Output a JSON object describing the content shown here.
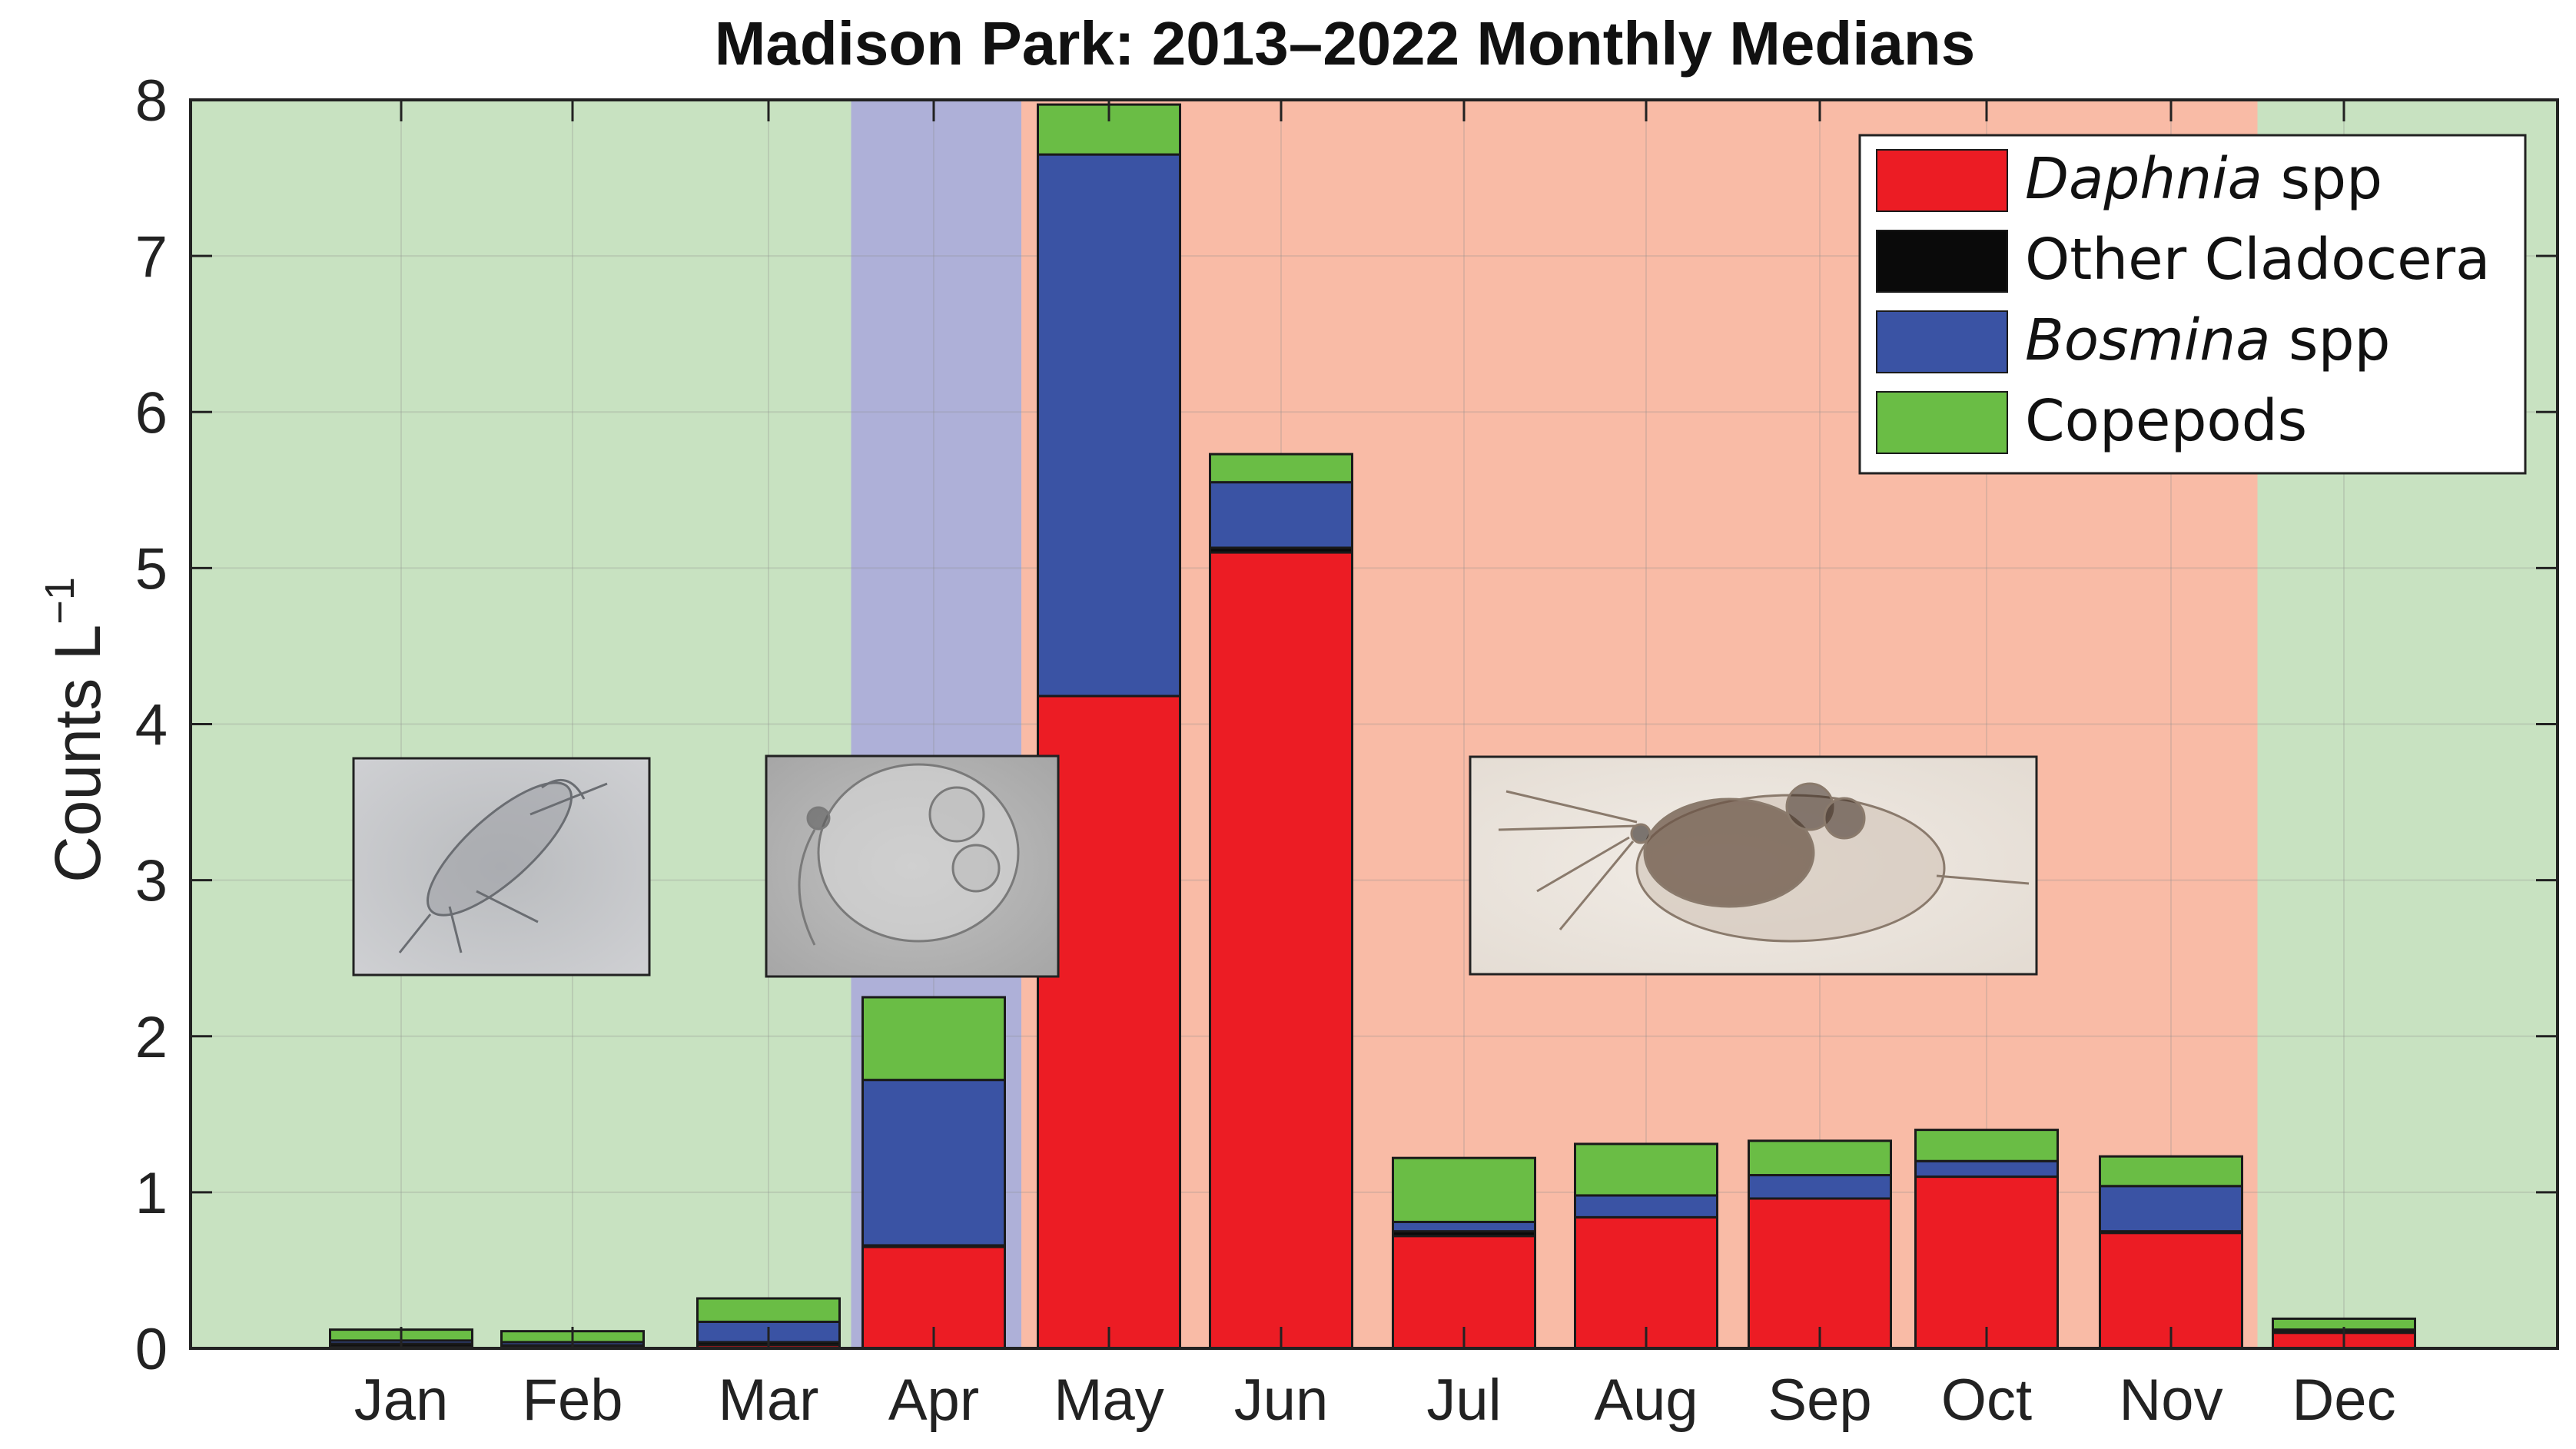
{
  "chart_data": {
    "type": "bar",
    "stacked": true,
    "title": "Madison Park: 2013–2022 Monthly Medians",
    "xlabel": "",
    "ylabel": "Counts L",
    "ylabel_superscript": "−1",
    "ylim": [
      0,
      8
    ],
    "yticks": [
      0,
      1,
      2,
      3,
      4,
      5,
      6,
      7,
      8
    ],
    "grid": true,
    "legend_position": "top-right",
    "categories": [
      "Jan",
      "Feb",
      "Mar",
      "Apr",
      "May",
      "Jun",
      "Jul",
      "Aug",
      "Sep",
      "Oct",
      "Nov",
      "Dec"
    ],
    "series": [
      {
        "name_italic": "Daphnia",
        "name_suffix": " spp",
        "color": "#ec1c24",
        "values": [
          0.01,
          0.01,
          0.02,
          0.65,
          4.18,
          5.1,
          0.72,
          0.84,
          0.96,
          1.1,
          0.74,
          0.1
        ]
      },
      {
        "name": "Other Cladocera",
        "color": "#0a0a0a",
        "values": [
          0.02,
          0.01,
          0.02,
          0.01,
          0.0,
          0.03,
          0.03,
          0.0,
          0.0,
          0.0,
          0.01,
          0.01
        ]
      },
      {
        "name_italic": "Bosmina",
        "name_suffix": " spp",
        "color": "#3a53a4",
        "values": [
          0.02,
          0.02,
          0.13,
          1.06,
          3.47,
          0.42,
          0.06,
          0.14,
          0.15,
          0.1,
          0.29,
          0.01
        ]
      },
      {
        "name": "Copepods",
        "color": "#6abd45",
        "values": [
          0.07,
          0.07,
          0.15,
          0.53,
          0.32,
          0.18,
          0.41,
          0.33,
          0.22,
          0.2,
          0.19,
          0.07
        ]
      }
    ],
    "season_shading": [
      {
        "from_month": "Jan",
        "to_month": "Mar",
        "color": "#c8e2c1"
      },
      {
        "from_month": "Apr",
        "to_month": "Apr",
        "color": "#aeb0d8"
      },
      {
        "from_month": "May",
        "to_month": "Nov",
        "color": "#f9bba6"
      },
      {
        "from_month": "Dec",
        "to_month": "Dec",
        "color": "#c8e2c1"
      }
    ]
  },
  "inset_images": [
    {
      "subject": "copepod-photo"
    },
    {
      "subject": "bosmina-photo"
    },
    {
      "subject": "daphnia-photo"
    }
  ]
}
